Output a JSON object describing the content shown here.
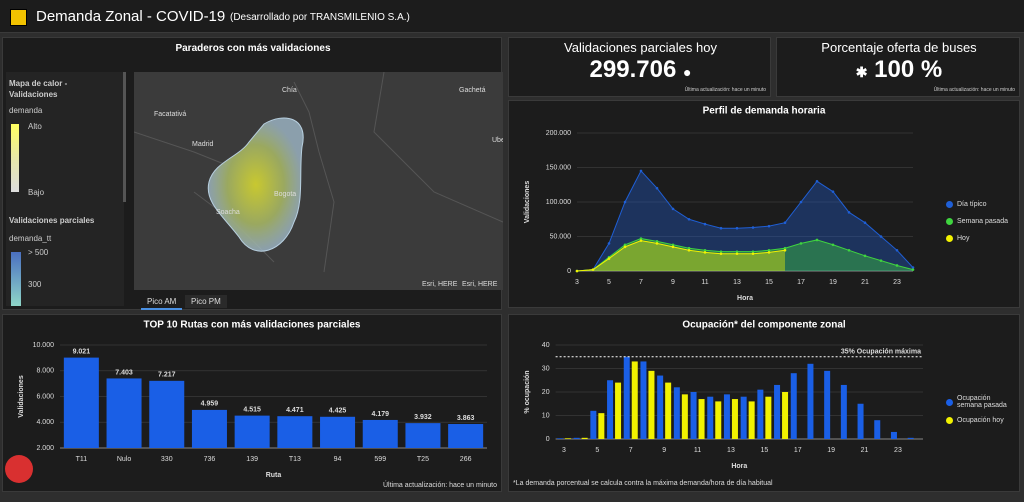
{
  "header": {
    "title": "Demanda Zonal - COVID-19",
    "subtitle": "(Desarrollado por TRANSMILENIO S.A.)"
  },
  "map_panel": {
    "title": "Paraderos con más validaciones",
    "legend": {
      "title": "Mapa de calor - Validaciones",
      "field": "demanda",
      "high": "Alto",
      "low": "Bajo",
      "title2": "Validaciones parciales",
      "field2": "demanda_tt",
      "top": "> 500",
      "mid": "300"
    },
    "labels": [
      "Chía",
      "Gachetá",
      "Facatativá",
      "Madrid",
      "Bogota",
      "Soacha",
      "Ube"
    ],
    "attribution": [
      "Esri, HERE",
      "Esri, HERE"
    ],
    "tabs": [
      "Pico AM",
      "Pico PM"
    ]
  },
  "indicators": [
    {
      "title": "Validaciones parciales hoy",
      "value": "299.706",
      "note": "Última actualización: hace un minuto"
    },
    {
      "title": "Porcentaje oferta de buses",
      "value": "100 %",
      "note": "Última actualización: hace un minuto"
    }
  ],
  "chart_data": [
    {
      "type": "bar",
      "title": "TOP 10 Rutas con más validaciones parciales",
      "x_label": "Ruta",
      "y_label": "Validaciones",
      "note": "Última actualización: hace un minuto",
      "color": "#1a5fe6",
      "categories": [
        "T11",
        "Nulo",
        "330",
        "736",
        "139",
        "T13",
        "94",
        "599",
        "T25",
        "266"
      ],
      "values": [
        9021,
        7403,
        7217,
        4959,
        4515,
        4471,
        4425,
        4179,
        3932,
        3863
      ],
      "value_labels": [
        "9.021",
        "7.403",
        "7.217",
        "4.959",
        "4.515",
        "4.471",
        "4.425",
        "4.179",
        "3.932",
        "3.863"
      ],
      "ylim": [
        2000,
        10000
      ],
      "yticks": [
        {
          "value": 2000,
          "label": "2.000"
        },
        {
          "value": 4000,
          "label": "4.000"
        },
        {
          "value": 6000,
          "label": "6.000"
        },
        {
          "value": 8000,
          "label": "8.000"
        },
        {
          "value": 10000,
          "label": "10.000"
        }
      ],
      "grid": true
    },
    {
      "type": "area",
      "title": "Perfil de demanda horaria",
      "x_label": "Hora",
      "y_label": "Validaciones",
      "x": [
        3,
        4,
        5,
        6,
        7,
        8,
        9,
        10,
        11,
        12,
        13,
        14,
        15,
        16,
        17,
        18,
        19,
        20,
        21,
        22,
        23,
        24
      ],
      "series": [
        {
          "name": "Día típico",
          "color": "#1f5fd6",
          "values": [
            0,
            2000,
            40000,
            100000,
            145000,
            120000,
            90000,
            75000,
            68000,
            62000,
            62000,
            63000,
            65000,
            70000,
            100000,
            130000,
            115000,
            85000,
            70000,
            50000,
            30000,
            5000
          ]
        },
        {
          "name": "Semana pasada",
          "color": "#3fd43f",
          "values": [
            0,
            2000,
            20000,
            38000,
            47000,
            43000,
            38000,
            33000,
            30000,
            28000,
            28000,
            28000,
            30000,
            33000,
            40000,
            45000,
            38000,
            30000,
            22000,
            15000,
            8000,
            2000
          ]
        },
        {
          "name": "Hoy",
          "color": "#f2f200",
          "values": [
            0,
            2000,
            18000,
            35000,
            44000,
            40000,
            35000,
            30000,
            27000,
            25000,
            25000,
            25000,
            27000,
            30000,
            null,
            null,
            null,
            null,
            null,
            null,
            null,
            null
          ]
        }
      ],
      "xlim": [
        3,
        24
      ],
      "xticks": [
        3,
        5,
        7,
        9,
        11,
        13,
        15,
        17,
        19,
        21,
        23
      ],
      "ylim": [
        0,
        200000
      ],
      "yticks": [
        0,
        {
          "value": 50000,
          "label": "50.000"
        },
        {
          "value": 100000,
          "label": "100.000"
        },
        {
          "value": 150000,
          "label": "150.000"
        },
        {
          "value": 200000,
          "label": "200.000"
        }
      ],
      "grid": true,
      "legend": "right"
    },
    {
      "type": "grouped_bar",
      "title": "Ocupación* del componente zonal",
      "x_label": "Hora",
      "y_label": "% ocupación",
      "note": "*La demanda porcentual se calcula contra la máxima demanda/hora de día habitual",
      "annotation": {
        "text": "35% Ocupación máxima",
        "value": 35
      },
      "x": [
        3,
        4,
        5,
        6,
        7,
        8,
        9,
        10,
        11,
        12,
        13,
        14,
        15,
        16,
        17,
        18,
        19,
        20,
        21,
        22,
        23,
        24
      ],
      "series": [
        {
          "name": "Ocupación semana pasada",
          "color": "#1a5fe6",
          "values": [
            0.3,
            0.5,
            12,
            25,
            35,
            33,
            27,
            22,
            20,
            18,
            19,
            18,
            21,
            23,
            28,
            32,
            29,
            23,
            15,
            8,
            3,
            0.5
          ]
        },
        {
          "name": "Ocupación hoy",
          "color": "#f2f200",
          "values": [
            0.3,
            0.5,
            11,
            24,
            33,
            29,
            24,
            19,
            17,
            16,
            17,
            16,
            18,
            20,
            null,
            null,
            null,
            null,
            null,
            null,
            null,
            null
          ]
        }
      ],
      "xlim": [
        2.5,
        24.5
      ],
      "xticks": [
        3,
        5,
        7,
        9,
        11,
        13,
        15,
        17,
        19,
        21,
        23
      ],
      "ylim": [
        0,
        40
      ],
      "yticks": [
        0,
        10,
        20,
        30,
        40
      ],
      "grid": true,
      "legend": "right"
    }
  ]
}
